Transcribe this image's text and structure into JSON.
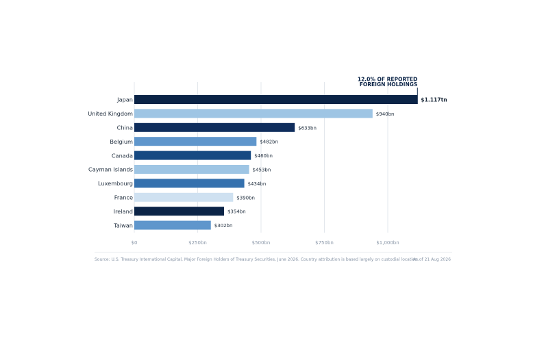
{
  "chart_data": {
    "type": "bar",
    "orientation": "horizontal",
    "categories": [
      "Japan",
      "United Kingdom",
      "China",
      "Belgium",
      "Canada",
      "Cayman Islands",
      "Luxembourg",
      "France",
      "Ireland",
      "Taiwan"
    ],
    "values": [
      1117,
      940,
      633,
      482,
      460,
      453,
      434,
      390,
      354,
      302
    ],
    "value_labels": [
      "$1.117tn",
      "$940bn",
      "$633bn",
      "$482bn",
      "$460bn",
      "$453bn",
      "$434bn",
      "$390bn",
      "$354bn",
      "$302bn"
    ],
    "colors": [
      "#0b2447",
      "#9ec5e4",
      "#0f2d5c",
      "#5f96cc",
      "#174a82",
      "#9ec5e4",
      "#3571ae",
      "#cfe1f1",
      "#0b2447",
      "#5f96cc"
    ],
    "x_ticks": [
      0,
      250,
      500,
      750,
      1000
    ],
    "x_tick_labels": [
      "$0",
      "$250bn",
      "$500bn",
      "$750bn",
      "$1,000bn"
    ],
    "xlim": [
      0,
      1150
    ],
    "grid": true,
    "annotation": {
      "line1": "12.0% OF REPORTED",
      "line2": "FOREIGN HOLDINGS",
      "category": "Japan"
    }
  },
  "footer": {
    "source": "Source: U.S. Treasury International Capital, Major Foreign Holders of Treasury Securities, June 2026. Country attribution is based largely on custodial location.",
    "as_of": "As of 21 Aug 2026"
  }
}
